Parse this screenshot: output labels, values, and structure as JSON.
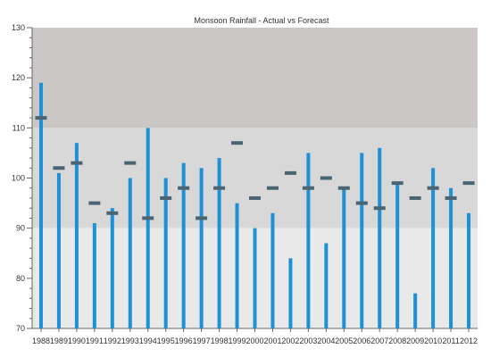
{
  "chart_data": {
    "type": "bar",
    "title": "Monsoon Rainfall - Actual vs Forecast",
    "categories": [
      "1988",
      "1989",
      "1990",
      "1991",
      "1992",
      "1993",
      "1994",
      "1995",
      "1996",
      "1997",
      "1998",
      "1999",
      "2000",
      "2001",
      "2002",
      "2003",
      "2004",
      "2005",
      "2006",
      "2007",
      "2008",
      "2009",
      "2010",
      "2011",
      "2012"
    ],
    "series": [
      {
        "values": [
          119,
          101,
          107,
          91,
          94,
          100,
          110,
          100,
          103,
          102,
          104,
          95,
          90,
          93,
          84,
          105,
          87,
          98,
          105,
          106,
          99,
          77,
          102,
          98,
          93
        ]
      },
      {
        "values": [
          112,
          102,
          103,
          95,
          93,
          103,
          92,
          96,
          98,
          92,
          98,
          107,
          96,
          98,
          101,
          98,
          100,
          98,
          95,
          94,
          99,
          96,
          98,
          96,
          99
        ]
      }
    ],
    "ylim": [
      70,
      130
    ],
    "yticks": [
      70,
      80,
      90,
      100,
      110,
      120,
      130
    ],
    "bands": [
      {
        "from": 110,
        "to": 130,
        "color": "#cbc7c7"
      },
      {
        "from": 90,
        "to": 110,
        "color": "#d8d8d8"
      },
      {
        "from": 70,
        "to": 90,
        "color": "#e9e9e9"
      }
    ],
    "colors": {
      "actual": "#1e90d6",
      "forecast": "#4a6571",
      "axis": "#666666"
    }
  }
}
